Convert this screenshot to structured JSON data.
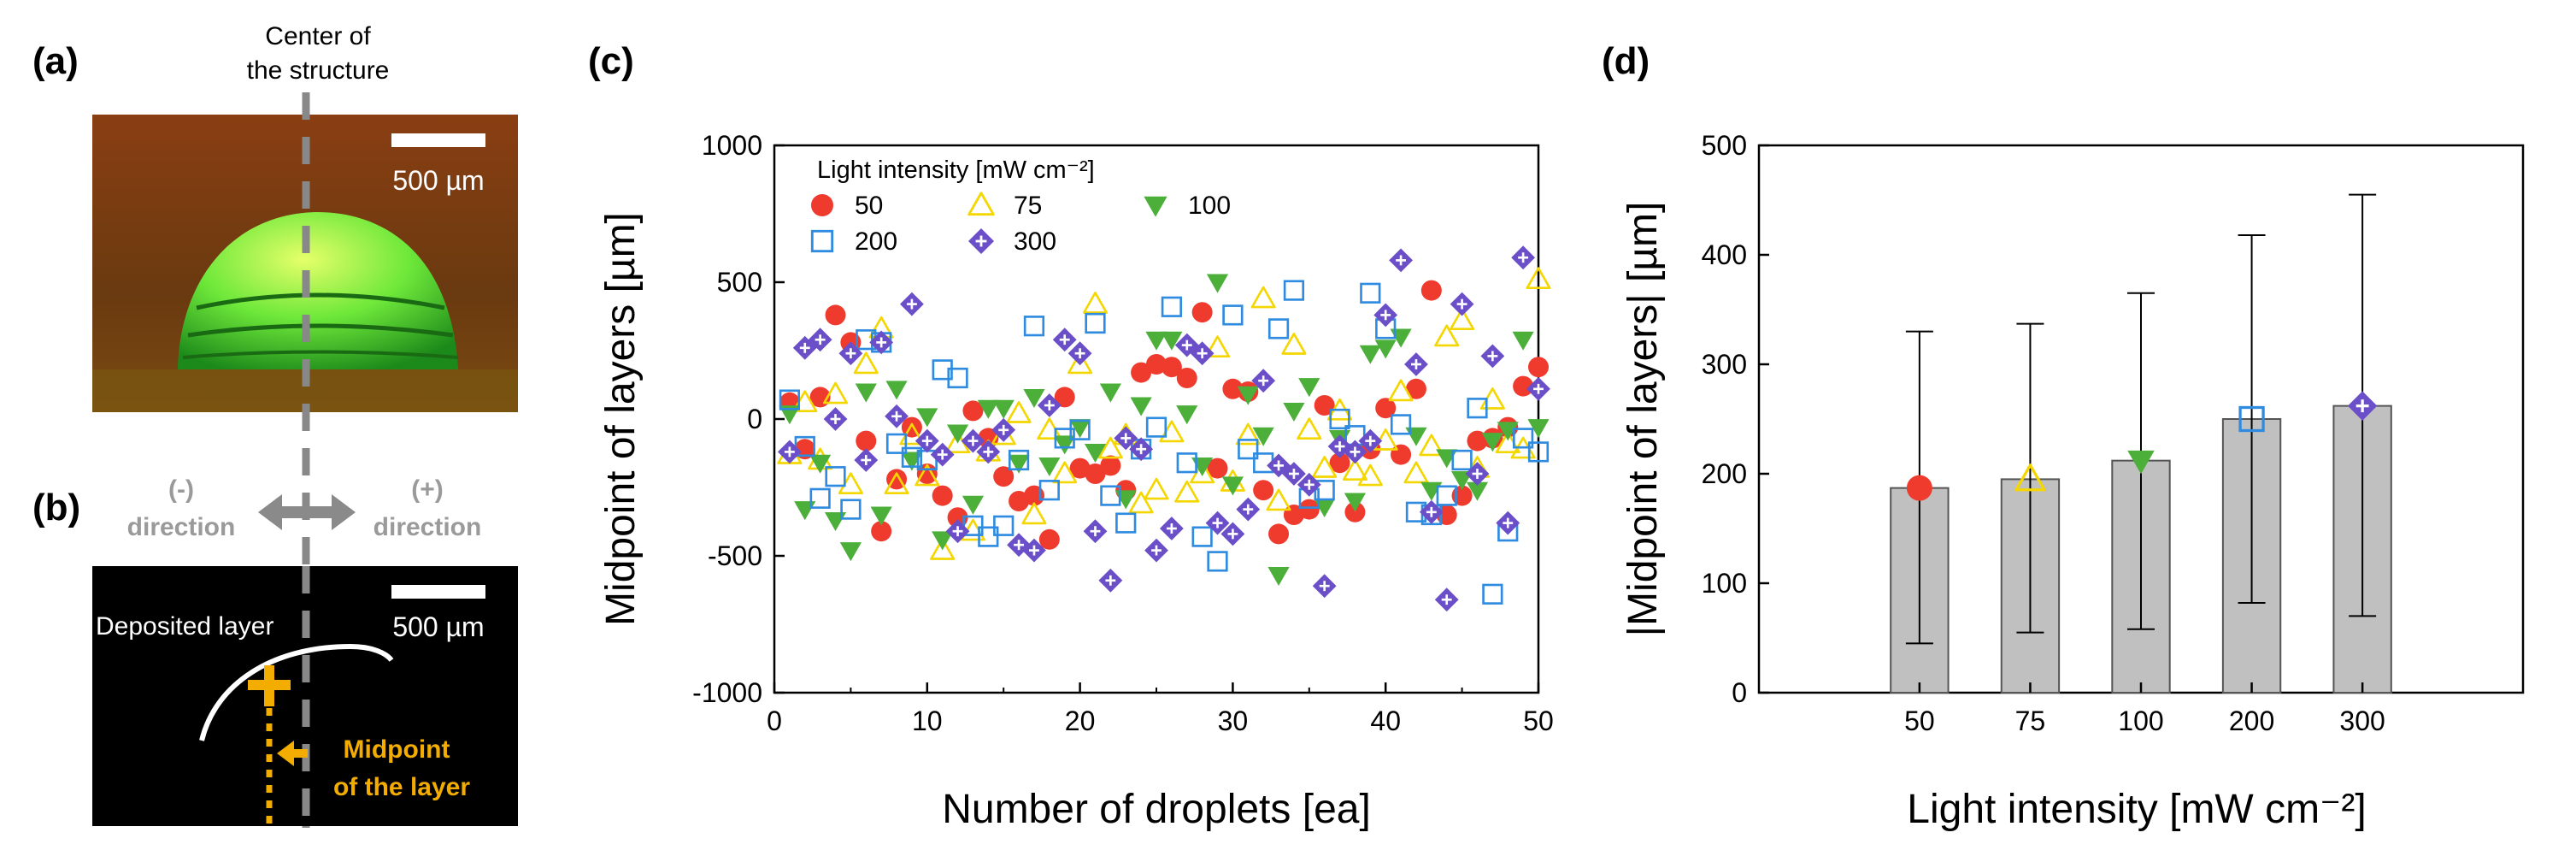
{
  "panels": {
    "a": {
      "letter": "(a)",
      "center_label_line1": "Center of",
      "center_label_line2": "the structure",
      "scale_label": "500 µm"
    },
    "b": {
      "letter": "(b)",
      "minus_line1": "(-)",
      "minus_line2": "direction",
      "plus_line1": "(+)",
      "plus_line2": "direction",
      "deposited_label": "Deposited layer",
      "scale_label": "500 µm",
      "midpoint_line1": "Midpoint",
      "midpoint_line2": "of the layer"
    },
    "c": {
      "letter": "(c)"
    },
    "d": {
      "letter": "(d)"
    }
  },
  "chart_data": [
    {
      "panel": "c",
      "type": "scatter",
      "xlabel": "Number of droplets [ea]",
      "ylabel": "Midpoint of layers [µm]",
      "xlim": [
        0,
        50
      ],
      "ylim": [
        -1000,
        1000
      ],
      "xticks": [
        0,
        10,
        20,
        30,
        40,
        50
      ],
      "yticks": [
        -1000,
        -500,
        0,
        500,
        1000
      ],
      "legend_title": "Light intensity [mW cm⁻²]",
      "legend_placement": "top-left",
      "series": [
        {
          "name": "50",
          "marker": "circle",
          "color": "#ee3b2e",
          "filled": true,
          "points": [
            [
              1,
              60
            ],
            [
              2,
              -110
            ],
            [
              3,
              80
            ],
            [
              4,
              380
            ],
            [
              5,
              280
            ],
            [
              6,
              -80
            ],
            [
              7,
              -410
            ],
            [
              8,
              -220
            ],
            [
              9,
              -30
            ],
            [
              10,
              -200
            ],
            [
              11,
              -280
            ],
            [
              12,
              -360
            ],
            [
              13,
              30
            ],
            [
              14,
              -70
            ],
            [
              15,
              -210
            ],
            [
              16,
              -300
            ],
            [
              17,
              -280
            ],
            [
              18,
              -440
            ],
            [
              19,
              80
            ],
            [
              20,
              -180
            ],
            [
              21,
              -200
            ],
            [
              22,
              -170
            ],
            [
              23,
              -260
            ],
            [
              24,
              170
            ],
            [
              25,
              200
            ],
            [
              26,
              190
            ],
            [
              27,
              150
            ],
            [
              28,
              390
            ],
            [
              29,
              -180
            ],
            [
              30,
              110
            ],
            [
              31,
              100
            ],
            [
              32,
              -260
            ],
            [
              33,
              -420
            ],
            [
              34,
              -350
            ],
            [
              35,
              -330
            ],
            [
              36,
              50
            ],
            [
              37,
              -160
            ],
            [
              38,
              -340
            ],
            [
              39,
              -110
            ],
            [
              40,
              40
            ],
            [
              41,
              -130
            ],
            [
              42,
              110
            ],
            [
              43,
              470
            ],
            [
              44,
              -350
            ],
            [
              45,
              -280
            ],
            [
              46,
              -80
            ],
            [
              47,
              -70
            ],
            [
              48,
              -30
            ],
            [
              49,
              120
            ],
            [
              50,
              190
            ]
          ]
        },
        {
          "name": "75",
          "marker": "triangle-up",
          "color": "#f4d600",
          "filled": false,
          "points": [
            [
              1,
              -130
            ],
            [
              2,
              60
            ],
            [
              3,
              -150
            ],
            [
              4,
              90
            ],
            [
              5,
              -240
            ],
            [
              6,
              200
            ],
            [
              7,
              330
            ],
            [
              8,
              -240
            ],
            [
              9,
              -60
            ],
            [
              10,
              -210
            ],
            [
              11,
              -480
            ],
            [
              12,
              -90
            ],
            [
              13,
              -410
            ],
            [
              14,
              -120
            ],
            [
              15,
              -60
            ],
            [
              16,
              20
            ],
            [
              17,
              -350
            ],
            [
              18,
              -40
            ],
            [
              19,
              -200
            ],
            [
              20,
              200
            ],
            [
              21,
              420
            ],
            [
              22,
              -110
            ],
            [
              23,
              -60
            ],
            [
              24,
              -310
            ],
            [
              25,
              -260
            ],
            [
              26,
              -50
            ],
            [
              27,
              -270
            ],
            [
              28,
              -200
            ],
            [
              29,
              260
            ],
            [
              30,
              -230
            ],
            [
              31,
              -60
            ],
            [
              32,
              440
            ],
            [
              33,
              -300
            ],
            [
              34,
              270
            ],
            [
              35,
              -40
            ],
            [
              36,
              -180
            ],
            [
              37,
              30
            ],
            [
              38,
              -190
            ],
            [
              39,
              -210
            ],
            [
              40,
              -80
            ],
            [
              41,
              100
            ],
            [
              42,
              -200
            ],
            [
              43,
              -100
            ],
            [
              44,
              300
            ],
            [
              45,
              360
            ],
            [
              46,
              -180
            ],
            [
              47,
              70
            ],
            [
              48,
              -90
            ],
            [
              49,
              -110
            ],
            [
              50,
              510
            ]
          ]
        },
        {
          "name": "100",
          "marker": "triangle-down",
          "color": "#4caf3a",
          "filled": true,
          "points": [
            [
              1,
              20
            ],
            [
              2,
              -330
            ],
            [
              3,
              -160
            ],
            [
              4,
              -370
            ],
            [
              5,
              -480
            ],
            [
              6,
              100
            ],
            [
              7,
              -350
            ],
            [
              8,
              110
            ],
            [
              9,
              -150
            ],
            [
              10,
              10
            ],
            [
              11,
              -440
            ],
            [
              12,
              -50
            ],
            [
              13,
              -310
            ],
            [
              14,
              40
            ],
            [
              15,
              40
            ],
            [
              16,
              -160
            ],
            [
              17,
              80
            ],
            [
              18,
              -170
            ],
            [
              19,
              -90
            ],
            [
              20,
              -30
            ],
            [
              21,
              -120
            ],
            [
              22,
              100
            ],
            [
              23,
              -290
            ],
            [
              24,
              50
            ],
            [
              25,
              290
            ],
            [
              26,
              290
            ],
            [
              27,
              20
            ],
            [
              28,
              -170
            ],
            [
              29,
              500
            ],
            [
              30,
              -240
            ],
            [
              31,
              90
            ],
            [
              32,
              -60
            ],
            [
              33,
              -570
            ],
            [
              34,
              30
            ],
            [
              35,
              120
            ],
            [
              36,
              -320
            ],
            [
              37,
              -70
            ],
            [
              38,
              -300
            ],
            [
              39,
              240
            ],
            [
              40,
              260
            ],
            [
              41,
              300
            ],
            [
              42,
              -60
            ],
            [
              43,
              -260
            ],
            [
              44,
              -140
            ],
            [
              45,
              -220
            ],
            [
              46,
              -260
            ],
            [
              47,
              -80
            ],
            [
              48,
              -40
            ],
            [
              49,
              290
            ],
            [
              50,
              -30
            ]
          ]
        },
        {
          "name": "200",
          "marker": "square",
          "color": "#2f8be0",
          "filled": false,
          "points": [
            [
              1,
              70
            ],
            [
              2,
              -100
            ],
            [
              3,
              -290
            ],
            [
              4,
              -210
            ],
            [
              5,
              -330
            ],
            [
              6,
              290
            ],
            [
              7,
              280
            ],
            [
              8,
              -90
            ],
            [
              9,
              -140
            ],
            [
              10,
              -150
            ],
            [
              11,
              180
            ],
            [
              12,
              150
            ],
            [
              13,
              -390
            ],
            [
              14,
              -430
            ],
            [
              15,
              -390
            ],
            [
              16,
              -150
            ],
            [
              17,
              340
            ],
            [
              18,
              -260
            ],
            [
              19,
              -70
            ],
            [
              20,
              -40
            ],
            [
              21,
              350
            ],
            [
              22,
              -280
            ],
            [
              23,
              -380
            ],
            [
              24,
              -110
            ],
            [
              25,
              -30
            ],
            [
              26,
              410
            ],
            [
              27,
              -160
            ],
            [
              28,
              -430
            ],
            [
              29,
              -520
            ],
            [
              30,
              380
            ],
            [
              31,
              -110
            ],
            [
              32,
              -160
            ],
            [
              33,
              330
            ],
            [
              34,
              470
            ],
            [
              35,
              -290
            ],
            [
              36,
              -260
            ],
            [
              37,
              0
            ],
            [
              38,
              -60
            ],
            [
              39,
              460
            ],
            [
              40,
              330
            ],
            [
              41,
              -20
            ],
            [
              42,
              -340
            ],
            [
              43,
              -350
            ],
            [
              44,
              -280
            ],
            [
              45,
              -150
            ],
            [
              46,
              40
            ],
            [
              47,
              -640
            ],
            [
              48,
              -410
            ],
            [
              49,
              -70
            ],
            [
              50,
              -120
            ]
          ]
        },
        {
          "name": "300",
          "marker": "diamond-plus",
          "color": "#6b4fc8",
          "filled": true,
          "points": [
            [
              1,
              -120
            ],
            [
              2,
              260
            ],
            [
              3,
              290
            ],
            [
              4,
              0
            ],
            [
              5,
              240
            ],
            [
              6,
              -150
            ],
            [
              7,
              280
            ],
            [
              8,
              10
            ],
            [
              9,
              420
            ],
            [
              10,
              -80
            ],
            [
              11,
              -130
            ],
            [
              12,
              -410
            ],
            [
              13,
              -80
            ],
            [
              14,
              -120
            ],
            [
              15,
              -40
            ],
            [
              16,
              -460
            ],
            [
              17,
              -480
            ],
            [
              18,
              50
            ],
            [
              19,
              290
            ],
            [
              20,
              240
            ],
            [
              21,
              -410
            ],
            [
              22,
              -590
            ],
            [
              23,
              -70
            ],
            [
              24,
              -110
            ],
            [
              25,
              -480
            ],
            [
              26,
              -400
            ],
            [
              27,
              270
            ],
            [
              28,
              240
            ],
            [
              29,
              -380
            ],
            [
              30,
              -420
            ],
            [
              31,
              -330
            ],
            [
              32,
              140
            ],
            [
              33,
              -170
            ],
            [
              34,
              -200
            ],
            [
              35,
              -240
            ],
            [
              36,
              -610
            ],
            [
              37,
              -100
            ],
            [
              38,
              -120
            ],
            [
              39,
              -80
            ],
            [
              40,
              380
            ],
            [
              41,
              580
            ],
            [
              42,
              200
            ],
            [
              43,
              -340
            ],
            [
              44,
              -660
            ],
            [
              45,
              420
            ],
            [
              46,
              -200
            ],
            [
              47,
              230
            ],
            [
              48,
              -380
            ],
            [
              49,
              590
            ],
            [
              50,
              110
            ]
          ]
        }
      ]
    },
    {
      "panel": "d",
      "type": "bar",
      "xlabel": "Light intensity [mW cm⁻²]",
      "ylabel": "|Midpoint of layers| [µm]",
      "ylim": [
        0,
        500
      ],
      "yticks": [
        0,
        100,
        200,
        300,
        400,
        500
      ],
      "categories": [
        "50",
        "75",
        "100",
        "200",
        "300"
      ],
      "values": [
        187,
        195,
        212,
        250,
        262
      ],
      "error_low": [
        45,
        55,
        58,
        82,
        70
      ],
      "error_high": [
        330,
        337,
        365,
        418,
        455
      ],
      "markers": [
        "circle",
        "triangle-up",
        "triangle-down",
        "square",
        "diamond-plus"
      ],
      "marker_colors": [
        "#ee3b2e",
        "#f4d600",
        "#4caf3a",
        "#2f8be0",
        "#6b4fc8"
      ],
      "bar_color": "#c0c0c0"
    }
  ]
}
